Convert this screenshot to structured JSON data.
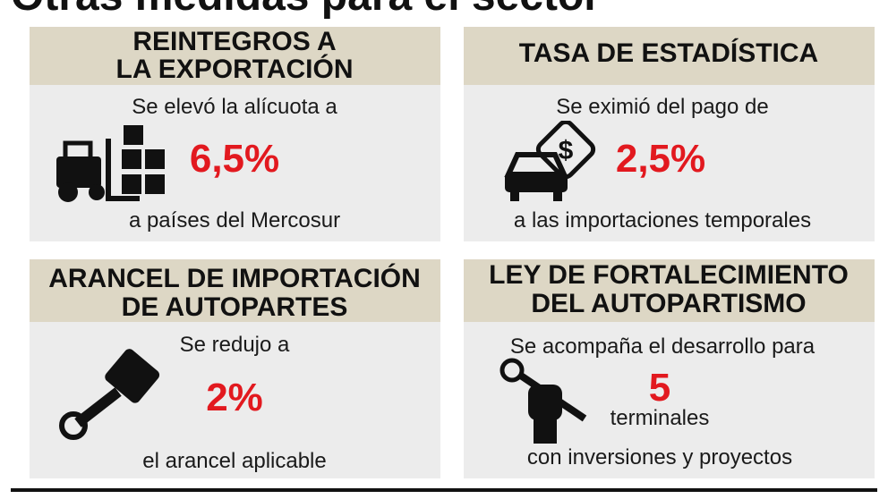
{
  "title": "Otras medidas para el sector",
  "cards": [
    {
      "header": [
        "REINTEGROS A",
        "LA EXPORTACIÓN"
      ],
      "top": "Se elevó la alícuota a",
      "value": "6,5%",
      "bottom": "a países del Mercosur"
    },
    {
      "header": [
        "TASA DE ESTADÍSTICA"
      ],
      "top": "Se eximió del pago de",
      "value": "2,5%",
      "bottom": "a las importaciones temporales"
    },
    {
      "header": [
        "ARANCEL DE IMPORTACIÓN",
        "DE AUTOPARTES"
      ],
      "top": "Se redujo a",
      "value": "2%",
      "bottom": "el arancel aplicable"
    },
    {
      "header": [
        "LEY DE FORTALECIMIENTO",
        "DEL AUTOPARTISMO"
      ],
      "top": "Se acompaña el desarrollo para",
      "value": "5",
      "value_unit": "terminales",
      "bottom": "con inversiones y proyectos"
    }
  ]
}
